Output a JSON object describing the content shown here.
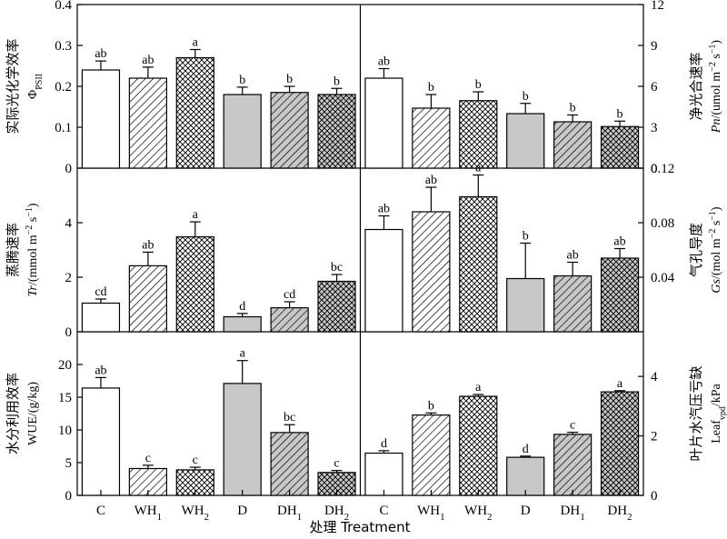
{
  "chart_data": {
    "type": "bar",
    "categories": [
      "C",
      "WH1",
      "WH2",
      "D",
      "DH1",
      "DH2"
    ],
    "xlabel": "处理 Treatment",
    "panels": [
      {
        "id": "phipsii",
        "type": "bar",
        "ylabel_cn": "实际光化学效率",
        "ylabel_en": "ΦPSII",
        "ylim": [
          0,
          0.4
        ],
        "yticks": [
          "0",
          "0.1",
          "0.2",
          "0.3",
          "0.4"
        ],
        "ytick_values": [
          0,
          0.1,
          0.2,
          0.3,
          0.4
        ],
        "values": [
          0.24,
          0.22,
          0.27,
          0.18,
          0.185,
          0.18
        ],
        "errors": [
          0.022,
          0.027,
          0.02,
          0.018,
          0.015,
          0.015
        ],
        "letters": [
          "ab",
          "ab",
          "a",
          "b",
          "b",
          "b"
        ]
      },
      {
        "id": "pn",
        "type": "bar",
        "ylabel_cn": "净光合速率",
        "ylabel_en": "Pn/(umol m⁻² s⁻¹)",
        "ylim": [
          0,
          12
        ],
        "yticks": [
          "0",
          "3",
          "6",
          "9",
          "12"
        ],
        "ytick_values": [
          0,
          3,
          6,
          9,
          12
        ],
        "values": [
          6.6,
          4.4,
          4.95,
          4.0,
          3.4,
          3.05
        ],
        "errors": [
          0.7,
          1.0,
          0.65,
          0.75,
          0.5,
          0.4
        ],
        "letters": [
          "ab",
          "b",
          "b",
          "b",
          "b",
          "b"
        ]
      },
      {
        "id": "tr",
        "type": "bar",
        "ylabel_cn": "蒸腾速率",
        "ylabel_en": "Tr/(mmol m⁻² s⁻¹)",
        "ylim": [
          0,
          6
        ],
        "yticks": [
          "0",
          "2",
          "4"
        ],
        "ytick_values": [
          0,
          2,
          4
        ],
        "values": [
          1.05,
          2.42,
          3.48,
          0.55,
          0.88,
          1.85
        ],
        "errors": [
          0.15,
          0.5,
          0.55,
          0.12,
          0.22,
          0.25
        ],
        "letters": [
          "cd",
          "ab",
          "a",
          "d",
          "cd",
          "bc"
        ]
      },
      {
        "id": "gs",
        "type": "bar",
        "ylabel_cn": "气孔导度",
        "ylabel_en": "Gs/(mol m⁻² s⁻¹)",
        "ylim": [
          0,
          0.12
        ],
        "yticks": [
          "0.04",
          "0.08",
          "0.12"
        ],
        "ytick_values": [
          0.04,
          0.08,
          0.12
        ],
        "values": [
          0.075,
          0.088,
          0.099,
          0.039,
          0.041,
          0.054
        ],
        "errors": [
          0.01,
          0.018,
          0.016,
          0.026,
          0.01,
          0.007
        ],
        "letters": [
          "ab",
          "ab",
          "a",
          "b",
          "ab",
          "ab"
        ]
      },
      {
        "id": "wue",
        "type": "bar",
        "ylabel_cn": "水分利用效率",
        "ylabel_en": "WUE/(g/kg)",
        "ylim": [
          0,
          25
        ],
        "yticks": [
          "0",
          "5",
          "10",
          "15",
          "20"
        ],
        "ytick_values": [
          0,
          5,
          10,
          15,
          20
        ],
        "values": [
          16.4,
          4.1,
          3.9,
          17.1,
          9.6,
          3.5
        ],
        "errors": [
          1.6,
          0.5,
          0.4,
          3.5,
          1.2,
          0.3
        ],
        "letters": [
          "ab",
          "c",
          "c",
          "a",
          "bc",
          "c"
        ]
      },
      {
        "id": "vpd",
        "type": "bar",
        "ylabel_cn": "叶片水汽压亏缺",
        "ylabel_en": "Leafvpd/kPa",
        "ylim": [
          0,
          5.5
        ],
        "yticks": [
          "0",
          "2",
          "4"
        ],
        "ytick_values": [
          0,
          2,
          4
        ],
        "values": [
          1.42,
          2.7,
          3.33,
          1.28,
          2.05,
          3.48
        ],
        "errors": [
          0.08,
          0.07,
          0.06,
          0.04,
          0.07,
          0.04
        ],
        "letters": [
          "d",
          "b",
          "a",
          "d",
          "c",
          "a"
        ]
      }
    ]
  }
}
